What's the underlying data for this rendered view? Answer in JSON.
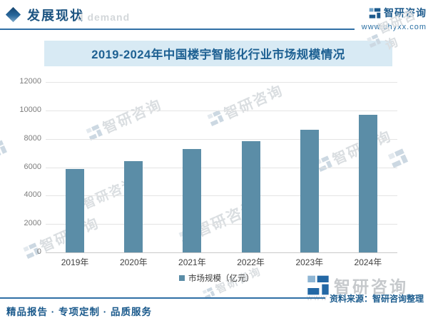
{
  "header": {
    "section_title": "发展现状",
    "ghost_text": "d demand",
    "brand_name": "智研咨询",
    "brand_url": "www.chyxx.com"
  },
  "chart_data": {
    "type": "bar",
    "title": "2019-2024年中国楼宇智能化行业市场规模情况",
    "categories": [
      "2019年",
      "2020年",
      "2021年",
      "2022年",
      "2023年",
      "2024年"
    ],
    "series": [
      {
        "name": "市场规模（亿元）",
        "values": [
          5900,
          6450,
          7300,
          7850,
          8650,
          9700
        ]
      }
    ],
    "legend": [
      "市场规模（亿元）"
    ],
    "legend_position": "bottom",
    "xlabel": "",
    "ylabel": "",
    "ylim": [
      0,
      12000
    ],
    "yticks": [
      0,
      2000,
      4000,
      6000,
      8000,
      10000,
      12000
    ],
    "grid": true,
    "bar_color": "#5b8da7",
    "unit": "亿元"
  },
  "watermark": {
    "brand": "智研咨询"
  },
  "footer": {
    "tagline": "精品报告 · 专项定制 · 品质服务",
    "ghost_www": "www",
    "source": "资料来源：智研咨询整理",
    "brand_name": "智研咨询"
  },
  "colors": {
    "accent_dark_blue": "#1c5a8c",
    "rule_blue": "#2f6fa5",
    "title_band_bg": "#d8eaf4",
    "title_text": "#1d6092",
    "bar": "#5b8da7",
    "grid_line": "#e4e4e4",
    "axis_line": "#c9c9c9",
    "tick_label_gray": "#7d7d7d",
    "x_label": "#404040"
  }
}
